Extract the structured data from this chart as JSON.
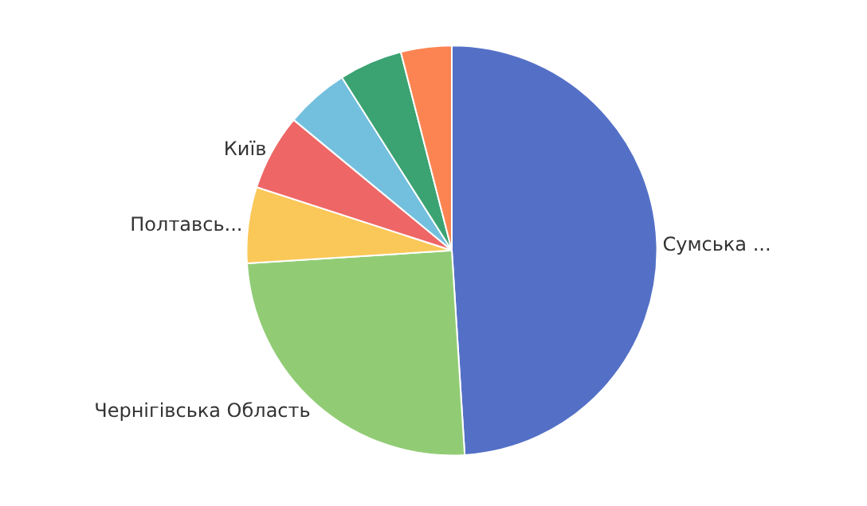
{
  "chart_data": {
    "type": "pie",
    "categories": [
      "Сумська ...",
      "Чернігівська Область",
      "Полтавсь...",
      "Київ",
      null,
      null,
      null
    ],
    "values": [
      49,
      25,
      6,
      6,
      5,
      5,
      4
    ],
    "colors": [
      "#5470c6",
      "#91cc75",
      "#fac858",
      "#ee6666",
      "#73c0de",
      "#3ba272",
      "#fc8452"
    ],
    "legend": false
  }
}
